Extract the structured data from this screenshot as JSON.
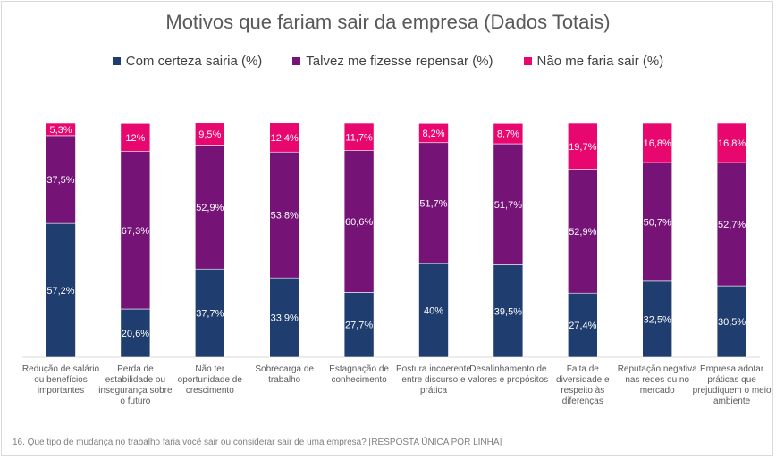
{
  "chart_data": {
    "type": "bar",
    "stacked": true,
    "title": "Motivos que fariam sair da empresa (Dados Totais)",
    "categories": [
      "Redução de salário ou benefícios importantes",
      "Perda de estabilidade ou insegurança sobre o futuro",
      "Não ter oportunidade de crescimento",
      "Sobrecarga de trabalho",
      "Estagnação de conhecimento",
      "Postura incoerente entre discurso e prática",
      "Desalinhamento de valores e propósitos",
      "Falta de diversidade e respeito às diferenças",
      "Reputação negativa nas redes ou no mercado",
      "Empresa adotar práticas que prejudiquem o meio ambiente"
    ],
    "series": [
      {
        "name": "Com certeza sairia (%)",
        "color": "#1f3d6e",
        "values": [
          57.2,
          20.6,
          37.7,
          33.9,
          27.7,
          40,
          39.5,
          27.4,
          32.5,
          30.5
        ],
        "labels": [
          "57,2%",
          "20,6%",
          "37,7%",
          "33,9%",
          "27,7%",
          "40%",
          "39,5%",
          "27,4%",
          "32,5%",
          "30,5%"
        ]
      },
      {
        "name": "Talvez me fizesse repensar (%)",
        "color": "#751377",
        "values": [
          37.5,
          67.3,
          52.9,
          53.8,
          60.6,
          51.7,
          51.7,
          52.9,
          50.7,
          52.7
        ],
        "labels": [
          "37,5%",
          "67,3%",
          "52,9%",
          "53,8%",
          "60,6%",
          "51,7%",
          "51,7%",
          "52,9%",
          "50,7%",
          "52,7%"
        ]
      },
      {
        "name": "Não me faria sair (%)",
        "color": "#e8066f",
        "values": [
          5.3,
          12,
          9.5,
          12.4,
          11.7,
          8.2,
          8.7,
          19.7,
          16.8,
          16.8
        ],
        "labels": [
          "5,3%",
          "12%",
          "9,5%",
          "12,4%",
          "11,7%",
          "8,2%",
          "8,7%",
          "19,7%",
          "16,8%",
          "16,8%"
        ]
      }
    ],
    "ylim": [
      0,
      100
    ],
    "grid": false,
    "legend": "top",
    "xlabel": "",
    "ylabel": ""
  },
  "footnote": "16. Que tipo de mudança no trabalho faria você sair ou considerar sair de uma empresa? [RESPOSTA ÚNICA POR LINHA]"
}
